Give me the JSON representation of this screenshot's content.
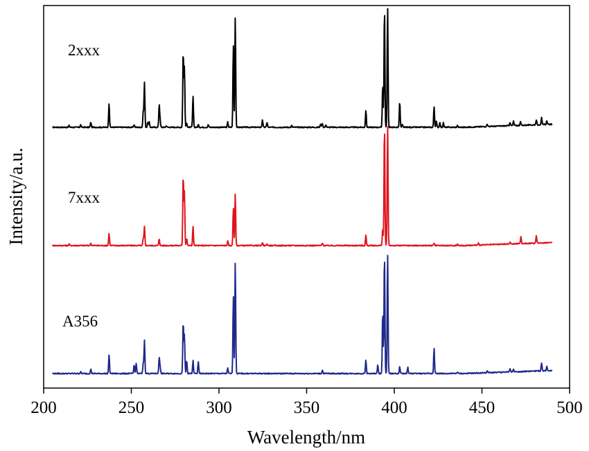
{
  "chart_data": {
    "type": "line",
    "title": "",
    "xlabel": "Wavelength/nm",
    "ylabel": "Intensity/a.u.",
    "xlim": [
      200,
      500
    ],
    "x_ticks": [
      "200",
      "250",
      "300",
      "350",
      "400",
      "450",
      "500"
    ],
    "y_ticks": [],
    "grid": false,
    "legend": "none",
    "x_range_data": [
      205,
      490
    ],
    "series": [
      {
        "name": "2xxx",
        "color": "#000000",
        "peaks": [
          [
            214.5,
            0.02
          ],
          [
            221.1,
            0.03
          ],
          [
            226.9,
            0.06
          ],
          [
            237.3,
            0.28
          ],
          [
            251.6,
            0.03
          ],
          [
            256.8,
            0.18
          ],
          [
            257.5,
            0.52
          ],
          [
            259.4,
            0.06
          ],
          [
            260.2,
            0.06
          ],
          [
            265.9,
            0.26
          ],
          [
            266.4,
            0.08
          ],
          [
            270.0,
            0.02
          ],
          [
            279.6,
            0.88
          ],
          [
            280.3,
            0.7
          ],
          [
            281.6,
            0.05
          ],
          [
            285.2,
            0.36
          ],
          [
            288.2,
            0.03
          ],
          [
            293.9,
            0.03
          ],
          [
            305.0,
            0.06
          ],
          [
            308.2,
            0.96
          ],
          [
            309.3,
            1.29
          ],
          [
            324.8,
            0.09
          ],
          [
            327.4,
            0.06
          ],
          [
            341.5,
            0.02
          ],
          [
            358.0,
            0.04
          ],
          [
            359.0,
            0.04
          ],
          [
            361.0,
            0.03
          ],
          [
            383.8,
            0.2
          ],
          [
            393.4,
            0.5
          ],
          [
            394.4,
            1.4
          ],
          [
            396.2,
            1.4
          ],
          [
            403.1,
            0.3
          ],
          [
            404.6,
            0.03
          ],
          [
            422.7,
            0.24
          ],
          [
            424.0,
            0.07
          ],
          [
            426.0,
            0.06
          ],
          [
            428.0,
            0.05
          ],
          [
            436.0,
            0.02
          ],
          [
            453.0,
            0.03
          ],
          [
            466.0,
            0.04
          ],
          [
            468.0,
            0.05
          ],
          [
            472.0,
            0.04
          ],
          [
            481.0,
            0.06
          ],
          [
            484.0,
            0.08
          ],
          [
            487.0,
            0.04
          ]
        ]
      },
      {
        "name": "7xxx",
        "color": "#e0141e",
        "peaks": [
          [
            214.5,
            0.02
          ],
          [
            226.9,
            0.03
          ],
          [
            237.3,
            0.14
          ],
          [
            256.8,
            0.08
          ],
          [
            257.5,
            0.22
          ],
          [
            265.9,
            0.08
          ],
          [
            279.6,
            0.82
          ],
          [
            280.3,
            0.62
          ],
          [
            281.6,
            0.08
          ],
          [
            285.2,
            0.22
          ],
          [
            305.0,
            0.05
          ],
          [
            308.2,
            0.44
          ],
          [
            309.3,
            0.6
          ],
          [
            324.8,
            0.03
          ],
          [
            327.4,
            0.02
          ],
          [
            359.0,
            0.03
          ],
          [
            383.8,
            0.12
          ],
          [
            393.4,
            0.2
          ],
          [
            394.4,
            1.4
          ],
          [
            396.2,
            1.4
          ],
          [
            422.7,
            0.03
          ],
          [
            436.0,
            0.02
          ],
          [
            448.0,
            0.02
          ],
          [
            466.0,
            0.02
          ],
          [
            472.2,
            0.08
          ],
          [
            481.0,
            0.08
          ]
        ]
      },
      {
        "name": "A356",
        "color": "#1e2a8a",
        "peaks": [
          [
            221.1,
            0.02
          ],
          [
            226.9,
            0.05
          ],
          [
            237.3,
            0.22
          ],
          [
            251.6,
            0.1
          ],
          [
            252.8,
            0.12
          ],
          [
            256.8,
            0.12
          ],
          [
            257.5,
            0.38
          ],
          [
            265.9,
            0.18
          ],
          [
            266.4,
            0.08
          ],
          [
            279.6,
            0.6
          ],
          [
            280.3,
            0.44
          ],
          [
            281.6,
            0.15
          ],
          [
            285.2,
            0.15
          ],
          [
            288.2,
            0.14
          ],
          [
            305.0,
            0.06
          ],
          [
            308.2,
            0.9
          ],
          [
            309.3,
            1.3
          ],
          [
            359.0,
            0.04
          ],
          [
            383.8,
            0.16
          ],
          [
            390.6,
            0.1
          ],
          [
            393.4,
            0.72
          ],
          [
            394.4,
            1.4
          ],
          [
            396.2,
            1.4
          ],
          [
            403.1,
            0.08
          ],
          [
            407.7,
            0.07
          ],
          [
            422.7,
            0.3
          ],
          [
            436.0,
            0.02
          ],
          [
            453.0,
            0.02
          ],
          [
            466.0,
            0.04
          ],
          [
            468.0,
            0.03
          ],
          [
            484.0,
            0.09
          ],
          [
            487.0,
            0.05
          ]
        ]
      }
    ]
  }
}
